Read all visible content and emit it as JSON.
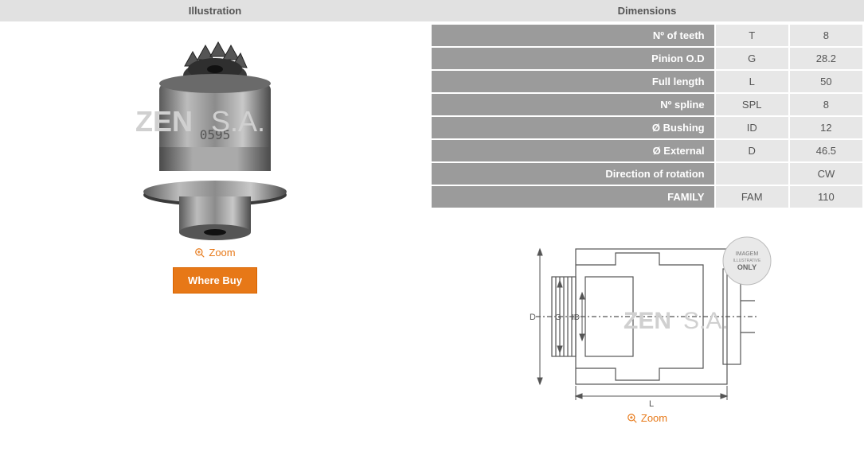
{
  "headers": {
    "illustration": "Illustration",
    "dimensions": "Dimensions"
  },
  "illustration": {
    "zoom_label": "Zoom",
    "where_buy_label": "Where Buy",
    "watermark_brand": "ZEN",
    "watermark_suffix": "S.A.",
    "part_stamp": "0595"
  },
  "dimensions": {
    "rows": [
      {
        "label": "Nº of teeth",
        "code": "T",
        "value": "8"
      },
      {
        "label": "Pinion O.D",
        "code": "G",
        "value": "28.2"
      },
      {
        "label": "Full length",
        "code": "L",
        "value": "50"
      },
      {
        "label": "Nº spline",
        "code": "SPL",
        "value": "8"
      },
      {
        "label": "Ø Bushing",
        "code": "ID",
        "value": "12"
      },
      {
        "label": "Ø External",
        "code": "D",
        "value": "46.5"
      },
      {
        "label": "Direction of rotation",
        "code": "",
        "value": "CW"
      },
      {
        "label": "FAMILY",
        "code": "FAM",
        "value": "110"
      }
    ]
  },
  "diagram": {
    "zoom_label": "Zoom",
    "badge_line1": "IMAGEM",
    "badge_line2": "ILLUSTRATIVE",
    "badge_line3": "ONLY",
    "dim_labels": {
      "D": "D",
      "G": "G",
      "ID": "ID",
      "L": "L"
    }
  },
  "colors": {
    "accent": "#e77817",
    "header_bg": "#e1e1e1",
    "row_label_bg": "#9b9b9b",
    "row_value_bg": "#e7e7e7"
  }
}
